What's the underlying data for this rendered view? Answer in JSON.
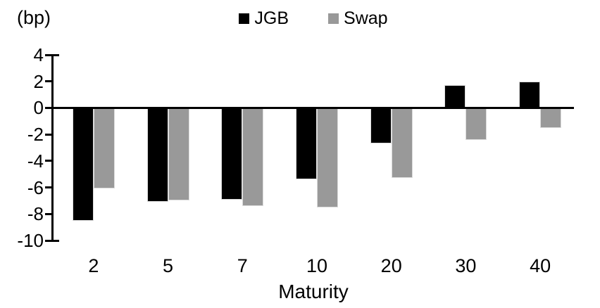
{
  "unit_label": "(bp)",
  "chart_data": {
    "type": "bar",
    "title": "",
    "xlabel": "Maturity",
    "ylabel": "(bp)",
    "categories": [
      "2",
      "5",
      "7",
      "10",
      "20",
      "30",
      "40"
    ],
    "series": [
      {
        "name": "JGB",
        "color": "#000000",
        "values": [
          -8.5,
          -7.1,
          -6.9,
          -5.4,
          -2.7,
          1.7,
          2.0
        ]
      },
      {
        "name": "Swap",
        "color": "#999999",
        "values": [
          -6.1,
          -7.0,
          -7.4,
          -7.5,
          -5.3,
          -2.4,
          -1.5
        ]
      }
    ],
    "y_ticks": [
      4,
      2,
      0,
      -2,
      -4,
      -6,
      -8,
      -10
    ],
    "ylim": [
      -10,
      4
    ],
    "grid": false,
    "legend_position": "top-center"
  }
}
